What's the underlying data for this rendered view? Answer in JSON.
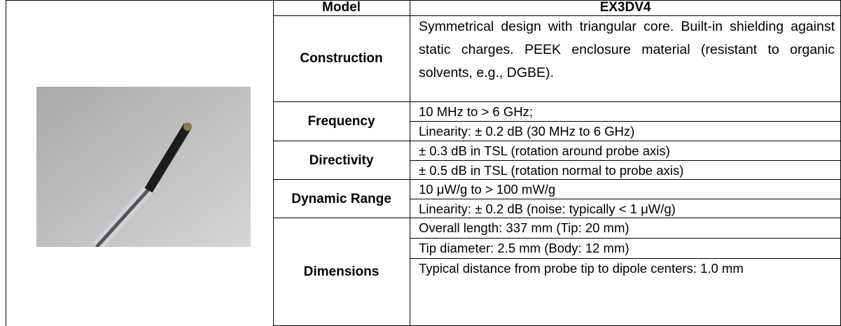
{
  "table": {
    "header": {
      "label": "Model",
      "value": "EX3DV4"
    },
    "rows": [
      {
        "label": "Construction",
        "lines": [
          "Symmetrical design with triangular core. Built-in shielding against static charges. PEEK enclosure material (resistant to organic solvents, e.g., DGBE)."
        ]
      },
      {
        "label": "Frequency",
        "lines": [
          "10 MHz to > 6 GHz;",
          "Linearity: ± 0.2 dB (30 MHz to 6 GHz)"
        ]
      },
      {
        "label": "Directivity",
        "lines": [
          "± 0.3 dB in TSL (rotation around probe axis)",
          "± 0.5 dB in TSL (rotation normal to probe axis)"
        ]
      },
      {
        "label": "Dynamic Range",
        "lines": [
          "10 μW/g to > 100 mW/g",
          "Linearity: ± 0.2 dB (noise: typically < 1 μW/g)"
        ]
      },
      {
        "label": "Dimensions",
        "lines": [
          "Overall length: 337 mm (Tip: 20 mm)",
          "Tip diameter: 2.5 mm (Body: 12 mm)",
          "Typical distance from probe tip to dipole centers: 1.0 mm"
        ]
      }
    ]
  }
}
